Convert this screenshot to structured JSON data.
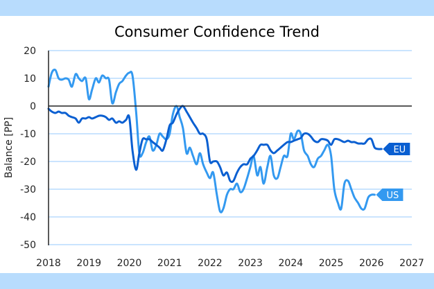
{
  "chart_data": {
    "type": "line",
    "title": "Consumer Confidence Trend",
    "xlabel": "",
    "ylabel": "Balance [PP]",
    "xlim": [
      2018,
      2027
    ],
    "ylim": [
      -50,
      20
    ],
    "xticks": [
      "2018",
      "2019",
      "2020",
      "2021",
      "2022",
      "2023",
      "2024",
      "2025",
      "2026",
      "2027"
    ],
    "yticks": [
      "20",
      "10",
      "0",
      "-10",
      "-20",
      "-30",
      "-40",
      "-50"
    ],
    "grid": true,
    "legend": "inline end labels",
    "series": [
      {
        "name": "US",
        "label": "US",
        "color": "#3399f0",
        "x": [
          2018.0,
          2018.08,
          2018.17,
          2018.25,
          2018.33,
          2018.42,
          2018.5,
          2018.58,
          2018.67,
          2018.75,
          2018.83,
          2018.92,
          2019.0,
          2019.08,
          2019.17,
          2019.25,
          2019.33,
          2019.42,
          2019.5,
          2019.58,
          2019.67,
          2019.75,
          2019.83,
          2019.92,
          2020.0,
          2020.08,
          2020.17,
          2020.25,
          2020.33,
          2020.42,
          2020.5,
          2020.58,
          2020.67,
          2020.75,
          2020.83,
          2020.92,
          2021.0,
          2021.08,
          2021.17,
          2021.25,
          2021.33,
          2021.42,
          2021.5,
          2021.58,
          2021.67,
          2021.75,
          2021.83,
          2021.92,
          2022.0,
          2022.08,
          2022.17,
          2022.25,
          2022.33,
          2022.42,
          2022.5,
          2022.58,
          2022.67,
          2022.75,
          2022.83,
          2022.92,
          2023.0,
          2023.08,
          2023.17,
          2023.25,
          2023.33,
          2023.42,
          2023.5,
          2023.58,
          2023.67,
          2023.75,
          2023.83,
          2023.92,
          2024.0,
          2024.08,
          2024.17,
          2024.25,
          2024.33,
          2024.42,
          2024.5,
          2024.58,
          2024.67,
          2024.75,
          2024.83,
          2024.92,
          2025.0,
          2025.08,
          2025.17,
          2025.25,
          2025.33,
          2025.42,
          2025.5,
          2025.58,
          2025.67,
          2025.75,
          2025.83,
          2025.92,
          2026.0,
          2026.08
        ],
        "values": [
          7,
          12,
          13,
          10,
          9.5,
          10,
          9.5,
          7,
          11.5,
          10,
          9,
          10,
          2.5,
          6,
          10,
          8.5,
          11,
          10,
          9.5,
          1,
          5,
          8,
          9,
          11,
          12,
          11,
          -2,
          -17,
          -17,
          -13,
          -11,
          -16,
          -14,
          -10,
          -11,
          -12,
          -10,
          -3,
          0,
          -4,
          -8,
          -17,
          -15,
          -18,
          -21,
          -17,
          -21,
          -24,
          -26,
          -24,
          -32,
          -38,
          -37,
          -32,
          -30,
          -30,
          -28,
          -31,
          -30,
          -26,
          -22,
          -18,
          -25,
          -22,
          -28,
          -22,
          -18,
          -25,
          -26,
          -22,
          -18,
          -18,
          -10,
          -12,
          -9,
          -10,
          -16,
          -18,
          -21,
          -22,
          -19,
          -18,
          -16,
          -14,
          -18,
          -30,
          -35,
          -37,
          -28,
          -27,
          -30,
          -33,
          -35,
          -37,
          -37,
          -33,
          -32,
          -32
        ],
        "end_value": -32
      },
      {
        "name": "EU",
        "label": "EU",
        "color": "#0a5fd1",
        "x": [
          2018.0,
          2018.08,
          2018.17,
          2018.25,
          2018.33,
          2018.42,
          2018.5,
          2018.58,
          2018.67,
          2018.75,
          2018.83,
          2018.92,
          2019.0,
          2019.08,
          2019.17,
          2019.25,
          2019.33,
          2019.42,
          2019.5,
          2019.58,
          2019.67,
          2019.75,
          2019.83,
          2019.92,
          2020.0,
          2020.08,
          2020.17,
          2020.25,
          2020.33,
          2020.42,
          2020.5,
          2020.58,
          2020.67,
          2020.75,
          2020.83,
          2020.92,
          2021.0,
          2021.08,
          2021.17,
          2021.25,
          2021.33,
          2021.42,
          2021.5,
          2021.58,
          2021.67,
          2021.75,
          2021.83,
          2021.92,
          2022.0,
          2022.08,
          2022.17,
          2022.25,
          2022.33,
          2022.42,
          2022.5,
          2022.58,
          2022.67,
          2022.75,
          2022.83,
          2022.92,
          2023.0,
          2023.08,
          2023.17,
          2023.25,
          2023.33,
          2023.42,
          2023.5,
          2023.58,
          2023.67,
          2023.75,
          2023.83,
          2023.92,
          2024.0,
          2024.08,
          2024.17,
          2024.25,
          2024.33,
          2024.42,
          2024.5,
          2024.58,
          2024.67,
          2024.75,
          2024.83,
          2024.92,
          2025.0,
          2025.08,
          2025.17,
          2025.25,
          2025.33,
          2025.42,
          2025.5,
          2025.58,
          2025.67,
          2025.75,
          2025.83,
          2025.92,
          2026.0,
          2026.08,
          2026.17,
          2026.25
        ],
        "values": [
          -1,
          -2,
          -2.5,
          -2,
          -2.5,
          -2.5,
          -3.5,
          -4,
          -4.5,
          -6,
          -4.5,
          -4.5,
          -4,
          -4.5,
          -4,
          -3.5,
          -3.5,
          -4,
          -5,
          -4.5,
          -6,
          -5.5,
          -6,
          -5,
          -4,
          -16,
          -23,
          -17,
          -12,
          -12,
          -12,
          -13,
          -14,
          -15,
          -16,
          -12,
          -7,
          -6,
          -3,
          -1,
          0,
          -2,
          -4,
          -6,
          -8,
          -10,
          -10,
          -12,
          -20,
          -20,
          -20,
          -22,
          -25,
          -24,
          -27,
          -27,
          -24,
          -22,
          -21,
          -21,
          -19,
          -18,
          -16,
          -14,
          -14,
          -14,
          -16,
          -17,
          -16,
          -15,
          -14,
          -13,
          -13,
          -12.5,
          -12,
          -11.5,
          -10,
          -10,
          -11,
          -12.5,
          -13,
          -12,
          -12,
          -12.5,
          -14,
          -12,
          -12,
          -12.5,
          -13,
          -12.5,
          -13,
          -13,
          -13.5,
          -13.5,
          -13.5,
          -12,
          -12,
          -15,
          -15.5,
          -15.5
        ],
        "end_value": -15.5
      }
    ]
  }
}
